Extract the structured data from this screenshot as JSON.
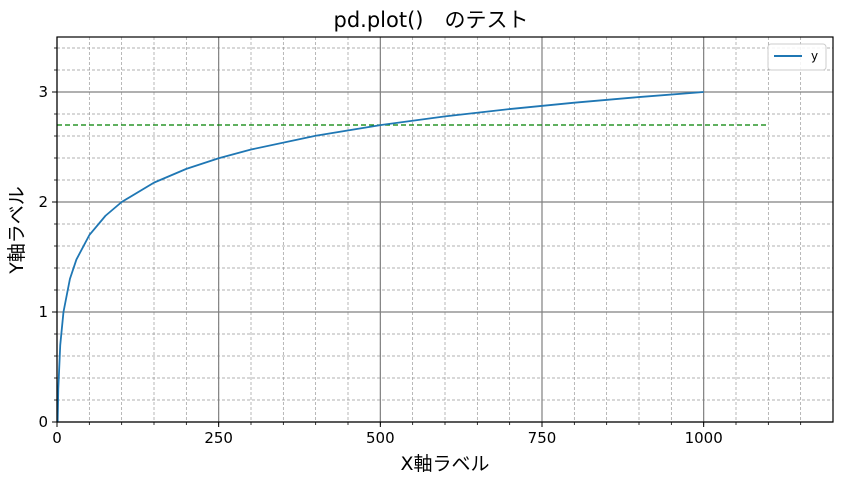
{
  "chart_data": {
    "type": "line",
    "title": "pd.plot()　のテスト",
    "xlabel": "X軸ラベル",
    "ylabel": "Y軸ラベル",
    "xlim": [
      0,
      1200
    ],
    "ylim": [
      0,
      3.5
    ],
    "xticks": [
      0,
      250,
      500,
      750,
      1000
    ],
    "xtick_labels": [
      "0",
      "250",
      "500",
      "750",
      "1000"
    ],
    "yticks": [
      0,
      1,
      2,
      3
    ],
    "ytick_labels": [
      "0",
      "1",
      "2",
      "3"
    ],
    "x_minor_step": 50,
    "y_minor_step": 0.2,
    "grid": {
      "major": true,
      "minor": true,
      "major_style": "solid",
      "minor_style": "dashed"
    },
    "legend": {
      "position": "upper right",
      "entries": [
        "y"
      ]
    },
    "series": [
      {
        "name": "y",
        "color": "#1f77b4",
        "function": "log10(x)",
        "x": [
          1,
          2,
          5,
          10,
          20,
          30,
          50,
          75,
          100,
          150,
          200,
          250,
          300,
          400,
          500,
          600,
          700,
          800,
          900,
          1000
        ],
        "values": [
          0,
          0.301,
          0.699,
          1.0,
          1.301,
          1.477,
          1.699,
          1.875,
          2.0,
          2.176,
          2.301,
          2.398,
          2.477,
          2.602,
          2.699,
          2.778,
          2.845,
          2.903,
          2.954,
          3.0
        ]
      }
    ],
    "annotations": [
      {
        "type": "hline",
        "y": 2.7,
        "x_start": 0,
        "x_end": 1100,
        "color": "#008000",
        "style": "dashed"
      }
    ]
  }
}
